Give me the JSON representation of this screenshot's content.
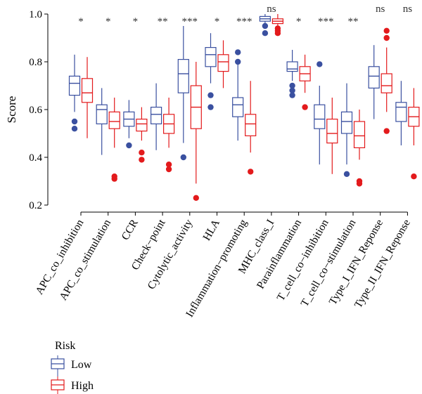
{
  "chart_data": {
    "type": "boxplot",
    "ylabel": "Score",
    "ylim": [
      0.18,
      1.0
    ],
    "yticks": [
      0.2,
      0.4,
      0.6,
      0.8,
      1.0
    ],
    "ytick_labels": [
      "0.2",
      "0.4",
      "0.6",
      "0.8",
      "1.0"
    ],
    "legend": {
      "title": "Risk",
      "placement": "bottom-left",
      "entries": [
        {
          "name": "Low",
          "color": "#3a50a0"
        },
        {
          "name": "High",
          "color": "#e31a1c"
        }
      ]
    },
    "categories": [
      "APC_co_inhibition",
      "APC_co_stimulation",
      "CCR",
      "Check−point",
      "Cytolytic_activity",
      "HLA",
      "Inflammation−promoting",
      "MHC_class_I",
      "Parainflammation",
      "T_cell_co−inhibition",
      "T_cell_co−stimulation",
      "Type_I_IFN_Reponse",
      "Type_II_IFN_Reponse"
    ],
    "significance": [
      "*",
      "*",
      "*",
      "**",
      "***",
      "*",
      "***",
      "ns",
      "*",
      "***",
      "**",
      "ns",
      "ns"
    ],
    "series": [
      {
        "name": "Low",
        "color": "#3a50a0",
        "boxes": [
          {
            "whisker_low": 0.59,
            "q1": 0.66,
            "median": 0.71,
            "q3": 0.74,
            "whisker_high": 0.83,
            "outliers": [
              0.55,
              0.52
            ]
          },
          {
            "whisker_low": 0.41,
            "q1": 0.54,
            "median": 0.6,
            "q3": 0.62,
            "whisker_high": 0.69,
            "outliers": []
          },
          {
            "whisker_low": 0.48,
            "q1": 0.53,
            "median": 0.56,
            "q3": 0.59,
            "whisker_high": 0.64,
            "outliers": [
              0.45
            ]
          },
          {
            "whisker_low": 0.43,
            "q1": 0.54,
            "median": 0.58,
            "q3": 0.61,
            "whisker_high": 0.71,
            "outliers": []
          },
          {
            "whisker_low": 0.46,
            "q1": 0.67,
            "median": 0.75,
            "q3": 0.81,
            "whisker_high": 0.95,
            "outliers": [
              0.4
            ]
          },
          {
            "whisker_low": 0.71,
            "q1": 0.78,
            "median": 0.83,
            "q3": 0.86,
            "whisker_high": 0.92,
            "outliers": [
              0.66,
              0.61
            ]
          },
          {
            "whisker_low": 0.47,
            "q1": 0.57,
            "median": 0.62,
            "q3": 0.65,
            "whisker_high": 0.79,
            "outliers": [
              0.84,
              0.8
            ]
          },
          {
            "whisker_low": 0.95,
            "q1": 0.97,
            "median": 0.98,
            "q3": 0.99,
            "whisker_high": 1.0,
            "outliers": [
              0.95,
              0.92
            ]
          },
          {
            "whisker_low": 0.72,
            "q1": 0.76,
            "median": 0.77,
            "q3": 0.8,
            "whisker_high": 0.85,
            "outliers": [
              0.7,
              0.68,
              0.66
            ]
          },
          {
            "whisker_low": 0.37,
            "q1": 0.52,
            "median": 0.56,
            "q3": 0.62,
            "whisker_high": 0.7,
            "outliers": [
              0.79
            ]
          },
          {
            "whisker_low": 0.37,
            "q1": 0.5,
            "median": 0.55,
            "q3": 0.59,
            "whisker_high": 0.71,
            "outliers": [
              0.33
            ]
          },
          {
            "whisker_low": 0.56,
            "q1": 0.69,
            "median": 0.74,
            "q3": 0.78,
            "whisker_high": 0.87,
            "outliers": []
          },
          {
            "whisker_low": 0.45,
            "q1": 0.55,
            "median": 0.61,
            "q3": 0.63,
            "whisker_high": 0.72,
            "outliers": []
          }
        ]
      },
      {
        "name": "High",
        "color": "#e31a1c",
        "boxes": [
          {
            "whisker_low": 0.48,
            "q1": 0.63,
            "median": 0.67,
            "q3": 0.73,
            "whisker_high": 0.82,
            "outliers": []
          },
          {
            "whisker_low": 0.44,
            "q1": 0.52,
            "median": 0.55,
            "q3": 0.59,
            "whisker_high": 0.65,
            "outliers": [
              0.32,
              0.31
            ]
          },
          {
            "whisker_low": 0.47,
            "q1": 0.51,
            "median": 0.54,
            "q3": 0.56,
            "whisker_high": 0.61,
            "outliers": [
              0.42,
              0.39
            ]
          },
          {
            "whisker_low": 0.44,
            "q1": 0.5,
            "median": 0.54,
            "q3": 0.58,
            "whisker_high": 0.65,
            "outliers": [
              0.37,
              0.35
            ]
          },
          {
            "whisker_low": 0.29,
            "q1": 0.52,
            "median": 0.61,
            "q3": 0.7,
            "whisker_high": 0.8,
            "outliers": [
              0.23
            ]
          },
          {
            "whisker_low": 0.69,
            "q1": 0.76,
            "median": 0.8,
            "q3": 0.83,
            "whisker_high": 0.89,
            "outliers": []
          },
          {
            "whisker_low": 0.42,
            "q1": 0.49,
            "median": 0.54,
            "q3": 0.58,
            "whisker_high": 0.72,
            "outliers": [
              0.34
            ]
          },
          {
            "whisker_low": 0.95,
            "q1": 0.96,
            "median": 0.97,
            "q3": 0.98,
            "whisker_high": 1.0,
            "outliers": [
              0.94,
              0.93,
              0.92
            ]
          },
          {
            "whisker_low": 0.67,
            "q1": 0.72,
            "median": 0.75,
            "q3": 0.78,
            "whisker_high": 0.83,
            "outliers": [
              0.61
            ]
          },
          {
            "whisker_low": 0.33,
            "q1": 0.46,
            "median": 0.5,
            "q3": 0.56,
            "whisker_high": 0.65,
            "outliers": []
          },
          {
            "whisker_low": 0.39,
            "q1": 0.44,
            "median": 0.49,
            "q3": 0.55,
            "whisker_high": 0.6,
            "outliers": [
              0.3,
              0.29
            ]
          },
          {
            "whisker_low": 0.59,
            "q1": 0.67,
            "median": 0.7,
            "q3": 0.75,
            "whisker_high": 0.86,
            "outliers": [
              0.93,
              0.9,
              0.51
            ]
          },
          {
            "whisker_low": 0.45,
            "q1": 0.53,
            "median": 0.57,
            "q3": 0.61,
            "whisker_high": 0.69,
            "outliers": [
              0.32
            ]
          }
        ]
      }
    ]
  }
}
